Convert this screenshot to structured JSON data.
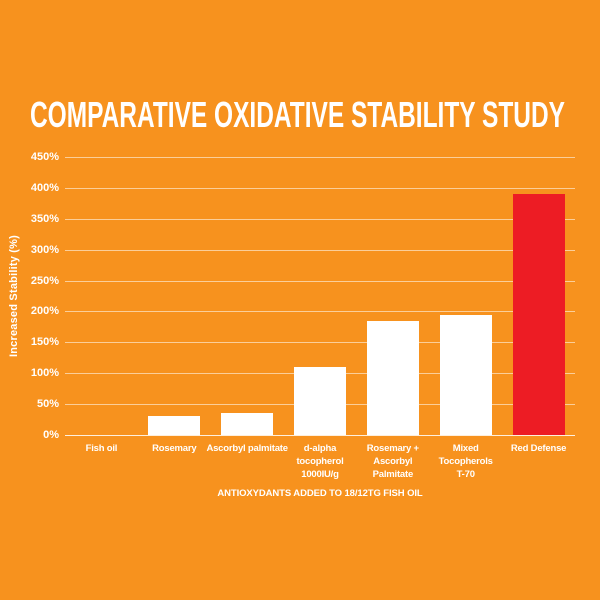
{
  "colors": {
    "background": "#F7921E",
    "bar_default": "#FFFFFF",
    "bar_highlight": "#ED1C24",
    "grid": "#FFFFFF",
    "text": "#FFFFFF"
  },
  "chart_data": {
    "type": "bar",
    "title": "COMPARATIVE OXIDATIVE STABILITY STUDY",
    "xlabel": "ANTIOXYDANTS ADDED TO 18/12TG FISH OIL",
    "ylabel": "Increased Stability (%)",
    "categories": [
      "Fish oil",
      "Rosemary",
      "Ascorbyl palmitate",
      "d-alpha tocopherol 1000IU/g",
      "Rosemary + Ascorbyl Palmitate",
      "Mixed Tocopherols T-70",
      "Red Defense"
    ],
    "category_label_lines": [
      [
        "Fish oil"
      ],
      [
        "Rosemary"
      ],
      [
        "Ascorbyl palmitate"
      ],
      [
        "d-alpha",
        "tocopherol",
        "1000IU/g"
      ],
      [
        "Rosemary +",
        "Ascorbyl",
        "Palmitate"
      ],
      [
        "Mixed",
        "Tocopherols",
        "T-70"
      ],
      [
        "Red Defense"
      ]
    ],
    "values": [
      0,
      30,
      35,
      110,
      185,
      195,
      390
    ],
    "bar_colors": [
      "#FFFFFF",
      "#FFFFFF",
      "#FFFFFF",
      "#FFFFFF",
      "#FFFFFF",
      "#FFFFFF",
      "#ED1C24"
    ],
    "highlight_category": "Red Defense",
    "ylim": [
      0,
      450
    ],
    "ytick_step": 50,
    "ytick_labels": [
      "0%",
      "50%",
      "100%",
      "150%",
      "200%",
      "250%",
      "300%",
      "350%",
      "400%",
      "450%"
    ],
    "grid": true,
    "legend": false
  }
}
